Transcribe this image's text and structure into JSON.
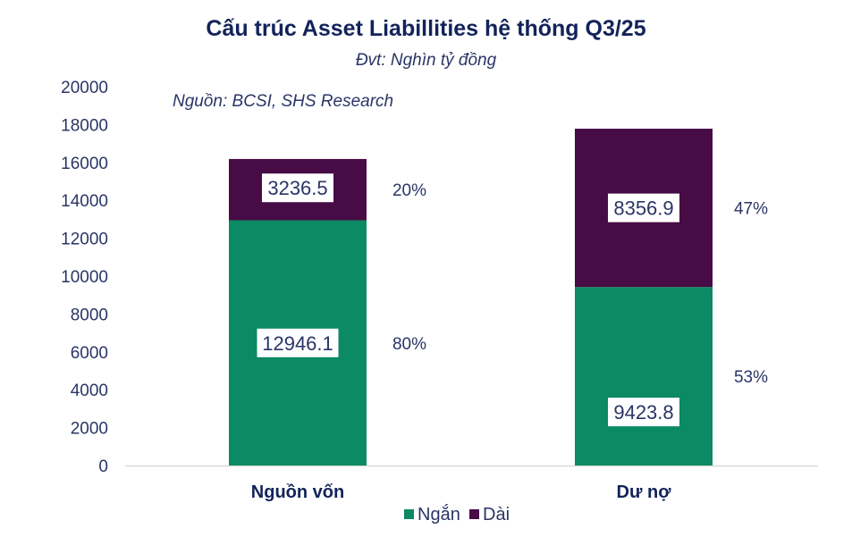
{
  "chart_data": {
    "type": "bar",
    "stacked": true,
    "title": "Cấu trúc Asset Liabillities hệ thống Q3/25",
    "subtitle": "Đvt: Nghìn tỷ đồng",
    "source": "Nguồn:  BCSI, SHS Research",
    "categories": [
      "Nguồn vốn",
      "Dư nợ"
    ],
    "series": [
      {
        "name": "Ngắn",
        "color": "#0b8a63",
        "values": [
          12946.1,
          9423.8
        ],
        "labels": [
          "12946.1",
          "9423.8"
        ],
        "share_labels": [
          "80%",
          "53%"
        ]
      },
      {
        "name": "Dài",
        "color": "#470b45",
        "values": [
          3236.5,
          8356.9
        ],
        "labels": [
          "3236.5",
          "8356.9"
        ],
        "share_labels": [
          "20%",
          "47%"
        ]
      }
    ],
    "ylim": [
      0,
      20000
    ],
    "yticks": [
      "0",
      "2000",
      "4000",
      "6000",
      "8000",
      "10000",
      "12000",
      "14000",
      "16000",
      "18000",
      "20000"
    ],
    "grid": false,
    "legend": "bottom"
  }
}
